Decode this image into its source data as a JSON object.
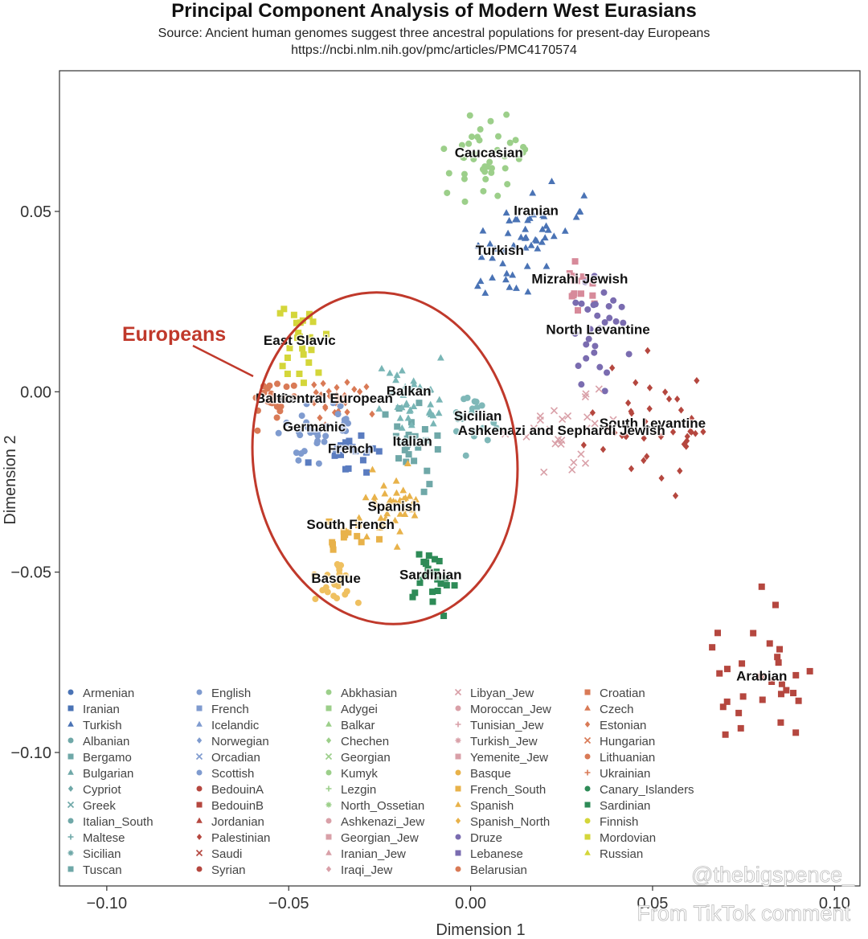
{
  "header": {
    "title": "Principal Component Analysis of Modern West Eurasians",
    "subtitle": "Source: Ancient human genomes suggest three ancestral populations for present-day Europeans",
    "url": "https://ncbi.nlm.nih.gov/pmc/articles/PMC4170574"
  },
  "annotation": {
    "label": "Europeans",
    "color": "#c0392b"
  },
  "watermarks": {
    "handle": "@thebigspence_",
    "credit": "From TikTok comment"
  },
  "chart_data": {
    "type": "scatter",
    "title": "Principal Component Analysis of Modern West Eurasians",
    "xlabel": "Dimension 1",
    "ylabel": "Dimension 2",
    "xlim": [
      -0.113,
      0.107
    ],
    "ylim": [
      -0.137,
      0.089
    ],
    "xticks": [
      -0.1,
      -0.05,
      0.0,
      0.05,
      0.1
    ],
    "xtick_labels": [
      "−0.10",
      "−0.05",
      "0.00",
      "0.05",
      "0.10"
    ],
    "yticks": [
      0.05,
      0.0,
      -0.05,
      -0.1
    ],
    "ytick_labels": [
      "0.05",
      "0.00",
      "−0.05",
      "−0.10"
    ],
    "grid": false,
    "legend_placement": "bottom",
    "clusters": [
      {
        "label": "Caucasian",
        "x": 0.005,
        "y": 0.065,
        "color": "#9ccf8a",
        "marker": "circle",
        "n": 40,
        "sx": 0.006,
        "sy": 0.006
      },
      {
        "label": "Iranian",
        "x": 0.018,
        "y": 0.049,
        "color": "#4a73b5",
        "marker": "triangle",
        "n": 25,
        "sx": 0.006,
        "sy": 0.005
      },
      {
        "label": "Turkish",
        "x": 0.008,
        "y": 0.038,
        "color": "#4a73b5",
        "marker": "triangle",
        "n": 30,
        "sx": 0.007,
        "sy": 0.006
      },
      {
        "label": "Mizrahi Jewish",
        "x": 0.03,
        "y": 0.03,
        "color": "#d78a9a",
        "marker": "square",
        "n": 15,
        "sx": 0.004,
        "sy": 0.004
      },
      {
        "label": "North Levantine",
        "x": 0.035,
        "y": 0.016,
        "color": "#7a6cb0",
        "marker": "circle",
        "n": 30,
        "sx": 0.003,
        "sy": 0.008
      },
      {
        "label": "South Levantine",
        "x": 0.05,
        "y": -0.01,
        "color": "#b5473f",
        "marker": "diamond",
        "n": 40,
        "sx": 0.008,
        "sy": 0.008
      },
      {
        "label": "Arabian",
        "x": 0.08,
        "y": -0.08,
        "color": "#b5473f",
        "marker": "square",
        "n": 30,
        "sx": 0.006,
        "sy": 0.012
      },
      {
        "label": "Ashkenazi and Sephardi Jewish",
        "x": 0.025,
        "y": -0.012,
        "color": "#d9a0a8",
        "marker": "x",
        "n": 25,
        "sx": 0.008,
        "sy": 0.006
      },
      {
        "label": "Sicilian",
        "x": 0.002,
        "y": -0.008,
        "color": "#7fb8b8",
        "marker": "circle",
        "n": 20,
        "sx": 0.004,
        "sy": 0.004
      },
      {
        "label": "Italian",
        "x": -0.016,
        "y": -0.015,
        "color": "#6fa8a8",
        "marker": "square",
        "n": 25,
        "sx": 0.004,
        "sy": 0.006
      },
      {
        "label": "Balkan",
        "x": -0.017,
        "y": -0.001,
        "color": "#79b6b6",
        "marker": "triangle",
        "n": 35,
        "sx": 0.005,
        "sy": 0.004
      },
      {
        "label": "Central European",
        "x": -0.037,
        "y": -0.003,
        "color": "#d97a56",
        "marker": "diamond",
        "n": 30,
        "sx": 0.005,
        "sy": 0.003
      },
      {
        "label": "Baltic",
        "x": -0.054,
        "y": -0.003,
        "color": "#d97a56",
        "marker": "circle",
        "n": 20,
        "sx": 0.003,
        "sy": 0.003
      },
      {
        "label": "East Slavic",
        "x": -0.047,
        "y": 0.013,
        "color": "#d4d63a",
        "marker": "square",
        "n": 25,
        "sx": 0.003,
        "sy": 0.006
      },
      {
        "label": "Germanic",
        "x": -0.043,
        "y": -0.011,
        "color": "#7f9bcf",
        "marker": "circle",
        "n": 35,
        "sx": 0.005,
        "sy": 0.004
      },
      {
        "label": "French",
        "x": -0.033,
        "y": -0.017,
        "color": "#5a7cc0",
        "marker": "square",
        "n": 20,
        "sx": 0.005,
        "sy": 0.003
      },
      {
        "label": "Spanish",
        "x": -0.021,
        "y": -0.033,
        "color": "#e8b24a",
        "marker": "triangle",
        "n": 40,
        "sx": 0.004,
        "sy": 0.005
      },
      {
        "label": "South French",
        "x": -0.033,
        "y": -0.038,
        "color": "#e8b24a",
        "marker": "square",
        "n": 12,
        "sx": 0.004,
        "sy": 0.004
      },
      {
        "label": "Basque",
        "x": -0.037,
        "y": -0.053,
        "color": "#efc060",
        "marker": "circle",
        "n": 20,
        "sx": 0.003,
        "sy": 0.003
      },
      {
        "label": "Sardinian",
        "x": -0.011,
        "y": -0.052,
        "color": "#2e8b57",
        "marker": "square",
        "n": 25,
        "sx": 0.003,
        "sy": 0.004
      }
    ],
    "series": [
      {
        "name": "Armenian",
        "color": "#4a73b5",
        "marker": "circle"
      },
      {
        "name": "Iranian",
        "color": "#4a73b5",
        "marker": "square"
      },
      {
        "name": "Turkish",
        "color": "#4a73b5",
        "marker": "triangle"
      },
      {
        "name": "Albanian",
        "color": "#6fa8a8",
        "marker": "circle"
      },
      {
        "name": "Bergamo",
        "color": "#6fa8a8",
        "marker": "square"
      },
      {
        "name": "Bulgarian",
        "color": "#6fa8a8",
        "marker": "triangle"
      },
      {
        "name": "Cypriot",
        "color": "#6fa8a8",
        "marker": "diamond"
      },
      {
        "name": "Greek",
        "color": "#6fa8a8",
        "marker": "x"
      },
      {
        "name": "Italian_South",
        "color": "#6fa8a8",
        "marker": "circle"
      },
      {
        "name": "Maltese",
        "color": "#6fa8a8",
        "marker": "plus"
      },
      {
        "name": "Sicilian",
        "color": "#6fa8a8",
        "marker": "asterisk"
      },
      {
        "name": "Tuscan",
        "color": "#6fa8a8",
        "marker": "boxsquare"
      },
      {
        "name": "English",
        "color": "#7f9bcf",
        "marker": "circle"
      },
      {
        "name": "French",
        "color": "#7f9bcf",
        "marker": "square"
      },
      {
        "name": "Icelandic",
        "color": "#7f9bcf",
        "marker": "triangle"
      },
      {
        "name": "Norwegian",
        "color": "#7f9bcf",
        "marker": "diamond"
      },
      {
        "name": "Orcadian",
        "color": "#7f9bcf",
        "marker": "x"
      },
      {
        "name": "Scottish",
        "color": "#7f9bcf",
        "marker": "circle"
      },
      {
        "name": "BedouinA",
        "color": "#b5473f",
        "marker": "circle"
      },
      {
        "name": "BedouinB",
        "color": "#b5473f",
        "marker": "square"
      },
      {
        "name": "Jordanian",
        "color": "#b5473f",
        "marker": "triangle"
      },
      {
        "name": "Palestinian",
        "color": "#b5473f",
        "marker": "diamond"
      },
      {
        "name": "Saudi",
        "color": "#b5473f",
        "marker": "x"
      },
      {
        "name": "Syrian",
        "color": "#b5473f",
        "marker": "circle"
      },
      {
        "name": "Abkhasian",
        "color": "#9ccf8a",
        "marker": "circle"
      },
      {
        "name": "Adygei",
        "color": "#9ccf8a",
        "marker": "square"
      },
      {
        "name": "Balkar",
        "color": "#9ccf8a",
        "marker": "triangle"
      },
      {
        "name": "Chechen",
        "color": "#9ccf8a",
        "marker": "diamond"
      },
      {
        "name": "Georgian",
        "color": "#9ccf8a",
        "marker": "x"
      },
      {
        "name": "Kumyk",
        "color": "#9ccf8a",
        "marker": "circle"
      },
      {
        "name": "Lezgin",
        "color": "#9ccf8a",
        "marker": "plus"
      },
      {
        "name": "North_Ossetian",
        "color": "#9ccf8a",
        "marker": "asterisk"
      },
      {
        "name": "Ashkenazi_Jew",
        "color": "#d9a0a8",
        "marker": "circle"
      },
      {
        "name": "Georgian_Jew",
        "color": "#d9a0a8",
        "marker": "square"
      },
      {
        "name": "Iranian_Jew",
        "color": "#d9a0a8",
        "marker": "triangle"
      },
      {
        "name": "Iraqi_Jew",
        "color": "#d9a0a8",
        "marker": "diamond"
      },
      {
        "name": "Libyan_Jew",
        "color": "#d9a0a8",
        "marker": "x"
      },
      {
        "name": "Moroccan_Jew",
        "color": "#d9a0a8",
        "marker": "circle"
      },
      {
        "name": "Tunisian_Jew",
        "color": "#d9a0a8",
        "marker": "plus"
      },
      {
        "name": "Turkish_Jew",
        "color": "#d9a0a8",
        "marker": "asterisk"
      },
      {
        "name": "Yemenite_Jew",
        "color": "#d9a0a8",
        "marker": "boxsquare"
      },
      {
        "name": "Basque",
        "color": "#e8b24a",
        "marker": "circle"
      },
      {
        "name": "French_South",
        "color": "#e8b24a",
        "marker": "square"
      },
      {
        "name": "Spanish",
        "color": "#e8b24a",
        "marker": "triangle"
      },
      {
        "name": "Spanish_North",
        "color": "#e8b24a",
        "marker": "diamond"
      },
      {
        "name": "Druze",
        "color": "#7a6cb0",
        "marker": "circle"
      },
      {
        "name": "Lebanese",
        "color": "#7a6cb0",
        "marker": "square"
      },
      {
        "name": "Belarusian",
        "color": "#d97a56",
        "marker": "circle"
      },
      {
        "name": "Croatian",
        "color": "#d97a56",
        "marker": "square"
      },
      {
        "name": "Czech",
        "color": "#d97a56",
        "marker": "triangle"
      },
      {
        "name": "Estonian",
        "color": "#d97a56",
        "marker": "diamond"
      },
      {
        "name": "Hungarian",
        "color": "#d97a56",
        "marker": "x"
      },
      {
        "name": "Lithuanian",
        "color": "#d97a56",
        "marker": "circle"
      },
      {
        "name": "Ukrainian",
        "color": "#d97a56",
        "marker": "plus"
      },
      {
        "name": "Canary_Islanders",
        "color": "#2e8b57",
        "marker": "circle"
      },
      {
        "name": "Sardinian",
        "color": "#2e8b57",
        "marker": "square"
      },
      {
        "name": "Finnish",
        "color": "#d4d63a",
        "marker": "circle"
      },
      {
        "name": "Mordovian",
        "color": "#d4d63a",
        "marker": "square"
      },
      {
        "name": "Russian",
        "color": "#d4d63a",
        "marker": "triangle"
      }
    ]
  }
}
